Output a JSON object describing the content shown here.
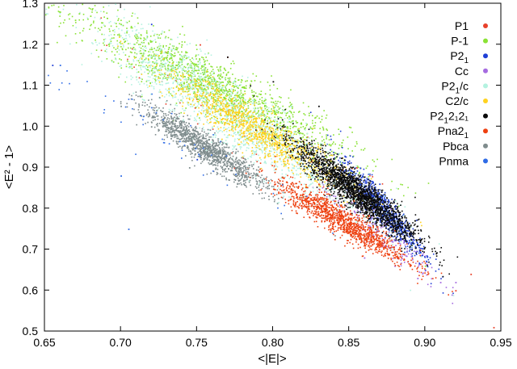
{
  "chart_data": {
    "type": "scatter",
    "title": "",
    "xlabel": "<|E|>",
    "ylabel": "<E² - 1>",
    "xlim": [
      0.65,
      0.95
    ],
    "ylim": [
      0.5,
      1.3
    ],
    "xticks": [
      0.65,
      0.7,
      0.75,
      0.8,
      0.85,
      0.9,
      0.95
    ],
    "yticks": [
      0.5,
      0.6,
      0.7,
      0.8,
      0.9,
      1.0,
      1.1,
      1.2,
      1.3
    ],
    "xtick_labels": [
      "0.65",
      "0.70",
      "0.75",
      "0.80",
      "0.85",
      "0.90",
      "0.95"
    ],
    "ytick_labels": [
      "0.5",
      "0.6",
      "0.7",
      "0.8",
      "0.9",
      "1.0",
      "1.1",
      "1.2",
      "1.3"
    ],
    "grid": false,
    "legend_position": "top-right",
    "series": [
      {
        "name": "P1",
        "label_main": "P1",
        "label_sub": "",
        "label_tail": "",
        "color": "#e8412b",
        "cloud": {
          "cx": 0.79,
          "cy": 0.98,
          "sx": 0.05,
          "sy": 0.12,
          "n": 60
        },
        "points": [
          [
            0.752,
            1.2
          ],
          [
            0.77,
            1.17
          ],
          [
            0.855,
            0.9
          ],
          [
            0.93,
            0.64
          ],
          [
            0.945,
            0.51
          ],
          [
            0.92,
            0.6
          ]
        ]
      },
      {
        "name": "P-1",
        "label_main": "P-1",
        "label_sub": "",
        "label_tail": "",
        "color": "#8ae234",
        "cloud": {
          "cx": 0.76,
          "cy": 1.1,
          "sx": 0.045,
          "sy": 0.09,
          "n": 1500
        },
        "points": [
          [
            0.66,
            1.28
          ],
          [
            0.67,
            1.26
          ],
          [
            0.68,
            1.27
          ],
          [
            0.7,
            1.25
          ],
          [
            0.74,
            1.2
          ],
          [
            0.8,
            1.06
          ],
          [
            0.87,
            0.72
          ],
          [
            0.9,
            0.66
          ]
        ]
      },
      {
        "name": "P2_1",
        "label_main": "P2",
        "label_sub": "1",
        "label_tail": "",
        "color": "#1f3fd6",
        "cloud": {
          "cx": 0.872,
          "cy": 0.8,
          "sx": 0.014,
          "sy": 0.06,
          "n": 700
        },
        "points": [
          [
            0.72,
            1.25
          ],
          [
            0.75,
            0.92
          ],
          [
            0.655,
            1.15
          ],
          [
            0.9,
            0.65
          ],
          [
            0.87,
            0.86
          ]
        ]
      },
      {
        "name": "Cc",
        "label_main": "Cc",
        "label_sub": "",
        "label_tail": "",
        "color": "#a56be0",
        "cloud": {
          "cx": 0.87,
          "cy": 0.74,
          "sx": 0.02,
          "sy": 0.06,
          "n": 160
        },
        "points": [
          [
            0.88,
            0.66
          ],
          [
            0.895,
            0.63
          ],
          [
            0.91,
            0.62
          ],
          [
            0.92,
            0.62
          ],
          [
            0.86,
            0.68
          ]
        ]
      },
      {
        "name": "P2_1/c",
        "label_main": "P2",
        "label_sub": "1",
        "label_tail": "/c",
        "color": "#b4f2e0",
        "cloud": {
          "cx": 0.775,
          "cy": 1.02,
          "sx": 0.045,
          "sy": 0.12,
          "n": 1700
        },
        "points": [
          [
            0.7,
            1.15
          ],
          [
            0.72,
            1.1
          ],
          [
            0.83,
            0.82
          ],
          [
            0.86,
            0.73
          ]
        ]
      },
      {
        "name": "C2/c",
        "label_main": "C2/c",
        "label_sub": "",
        "label_tail": "",
        "color": "#ffd21f",
        "cloud": {
          "cx": 0.79,
          "cy": 0.99,
          "sx": 0.03,
          "sy": 0.07,
          "n": 1100
        },
        "points": [
          [
            0.8,
            1.05
          ],
          [
            0.77,
            1.03
          ],
          [
            0.81,
            0.9
          ]
        ]
      },
      {
        "name": "P2_12_12_1",
        "label_main": "P2",
        "label_sub": "1",
        "label_tail": "2₁2₁",
        "color": "#0a0a0a",
        "cloud": {
          "cx": 0.855,
          "cy": 0.84,
          "sx": 0.02,
          "sy": 0.06,
          "n": 2000
        },
        "points": [
          [
            0.77,
            1.17
          ],
          [
            0.8,
            1.11
          ],
          [
            0.83,
            1.05
          ],
          [
            0.785,
            1.1
          ]
        ]
      },
      {
        "name": "Pna2_1",
        "label_main": "Pna2",
        "label_sub": "1",
        "label_tail": "",
        "color": "#ee4010",
        "cloud": {
          "cx": 0.845,
          "cy": 0.77,
          "sx": 0.022,
          "sy": 0.05,
          "n": 1200
        },
        "points": [
          [
            0.83,
            0.86
          ],
          [
            0.81,
            0.82
          ],
          [
            0.88,
            0.68
          ],
          [
            0.89,
            0.66
          ]
        ]
      },
      {
        "name": "Pbca",
        "label_main": "Pbca",
        "label_sub": "",
        "label_tail": "",
        "color": "#7f8c8d",
        "cloud": {
          "cx": 0.755,
          "cy": 0.95,
          "sx": 0.02,
          "sy": 0.05,
          "n": 1300
        },
        "points": [
          [
            0.72,
            1.0
          ],
          [
            0.73,
            0.98
          ],
          [
            0.745,
            0.9
          ],
          [
            0.7,
            1.05
          ]
        ]
      },
      {
        "name": "Pnma",
        "label_main": "Pnma",
        "label_sub": "",
        "label_tail": "",
        "color": "#2e6be6",
        "cloud": {
          "cx": 0.73,
          "cy": 0.98,
          "sx": 0.05,
          "sy": 0.1,
          "n": 60
        },
        "points": [
          [
            0.705,
            0.75
          ],
          [
            0.66,
            1.15
          ],
          [
            0.7,
            0.88
          ]
        ]
      }
    ]
  }
}
